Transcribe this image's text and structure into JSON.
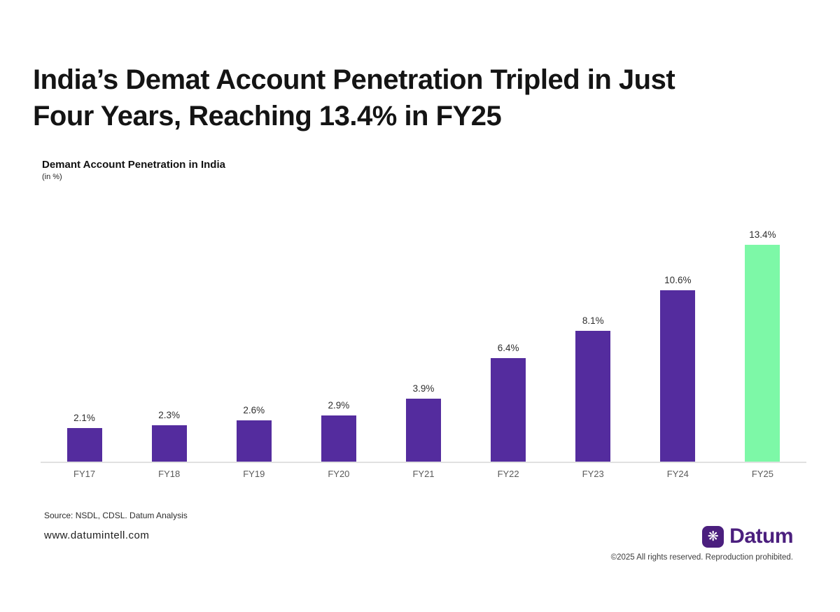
{
  "headline": {
    "line1": "India’s Demat Account Penetration Tripled in Just",
    "line2": "Four Years, Reaching 13.4% in FY25"
  },
  "chart_data": {
    "type": "bar",
    "title": "Demant Account Penetration in India",
    "unit_label": "(in %)",
    "categories": [
      "FY17",
      "FY18",
      "FY19",
      "FY20",
      "FY21",
      "FY22",
      "FY23",
      "FY24",
      "FY25"
    ],
    "values": [
      2.1,
      2.3,
      2.6,
      2.9,
      3.9,
      6.4,
      8.1,
      10.6,
      13.4
    ],
    "value_labels": [
      "2.1%",
      "2.3%",
      "2.6%",
      "2.9%",
      "3.9%",
      "6.4%",
      "8.1%",
      "10.6%",
      "13.4%"
    ],
    "xlabel": "",
    "ylabel": "(in %)",
    "ylim": [
      0,
      14
    ],
    "grid": false,
    "legend": "none",
    "bar_color": "#542C9E",
    "highlight_color": "#7DF8A7",
    "highlight_index": 8,
    "highlight_category": "FY25"
  },
  "footer": {
    "source": "Source: NSDL, CDSL. Datum Analysis",
    "website": "www.datumintell.com",
    "brand_name": "Datum",
    "brand_icon_glyph": "❋",
    "brand_color": "#4B1F7E",
    "copyright": "©2025 All rights reserved. Reproduction prohibited."
  }
}
